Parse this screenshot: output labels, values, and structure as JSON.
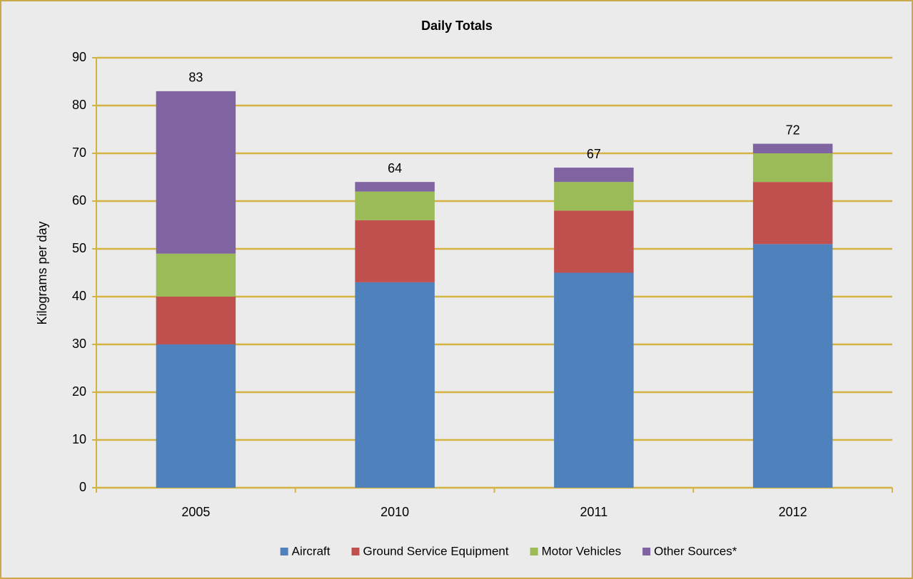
{
  "chart_data": {
    "type": "stacked_bar",
    "title": "Daily Totals",
    "y_label": "Kilograms per day",
    "categories": [
      "2005",
      "2010",
      "2011",
      "2012"
    ],
    "series": [
      {
        "name": "Aircraft",
        "color": "#4f81bd",
        "values": [
          30,
          43,
          45,
          51
        ]
      },
      {
        "name": "Ground Service Equipment",
        "color": "#c0504d",
        "values": [
          10,
          13,
          13,
          13
        ]
      },
      {
        "name": "Motor Vehicles",
        "color": "#9bbb59",
        "values": [
          9,
          6,
          6,
          6
        ]
      },
      {
        "name": "Other Sources*",
        "color": "#8064a2",
        "values": [
          34,
          2,
          3,
          2
        ]
      }
    ],
    "totals": [
      83,
      64,
      67,
      72
    ],
    "ylim": [
      0,
      90
    ],
    "yticks": [
      0,
      10,
      20,
      30,
      40,
      50,
      60,
      70,
      80,
      90
    ],
    "grid": true,
    "legend": "bottom"
  }
}
